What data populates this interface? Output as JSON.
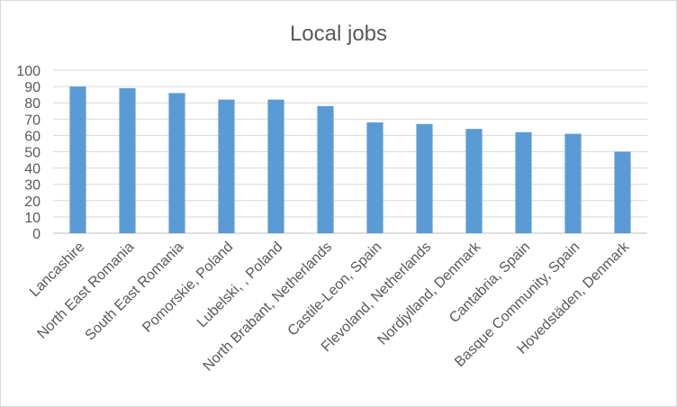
{
  "chart_data": {
    "type": "bar",
    "title": "Local jobs",
    "xlabel": "",
    "ylabel": "",
    "categories": [
      "Lancashire",
      "North East Romania",
      "South East Romania",
      "Pomorskie, Poland",
      "Lubelski, , Poland",
      "North Brabant, Netherlands",
      "Castile-Leon, Spain",
      "Flevoland, Netherlands",
      "Nordjylland, Denmark",
      "Cantabria, Spain",
      "Basque Community, Spain",
      "Hovedstäden, Denmark"
    ],
    "values": [
      90,
      89,
      86,
      82,
      82,
      78,
      68,
      67,
      64,
      62,
      61,
      50
    ],
    "ylim": [
      0,
      100
    ],
    "yticks": [
      0,
      10,
      20,
      30,
      40,
      50,
      60,
      70,
      80,
      90,
      100
    ],
    "grid": true,
    "legend": "none",
    "colors": {
      "bar": "#5b9bd5",
      "grid": "#d9d9d9",
      "text": "#595959",
      "title": "#595959"
    }
  }
}
